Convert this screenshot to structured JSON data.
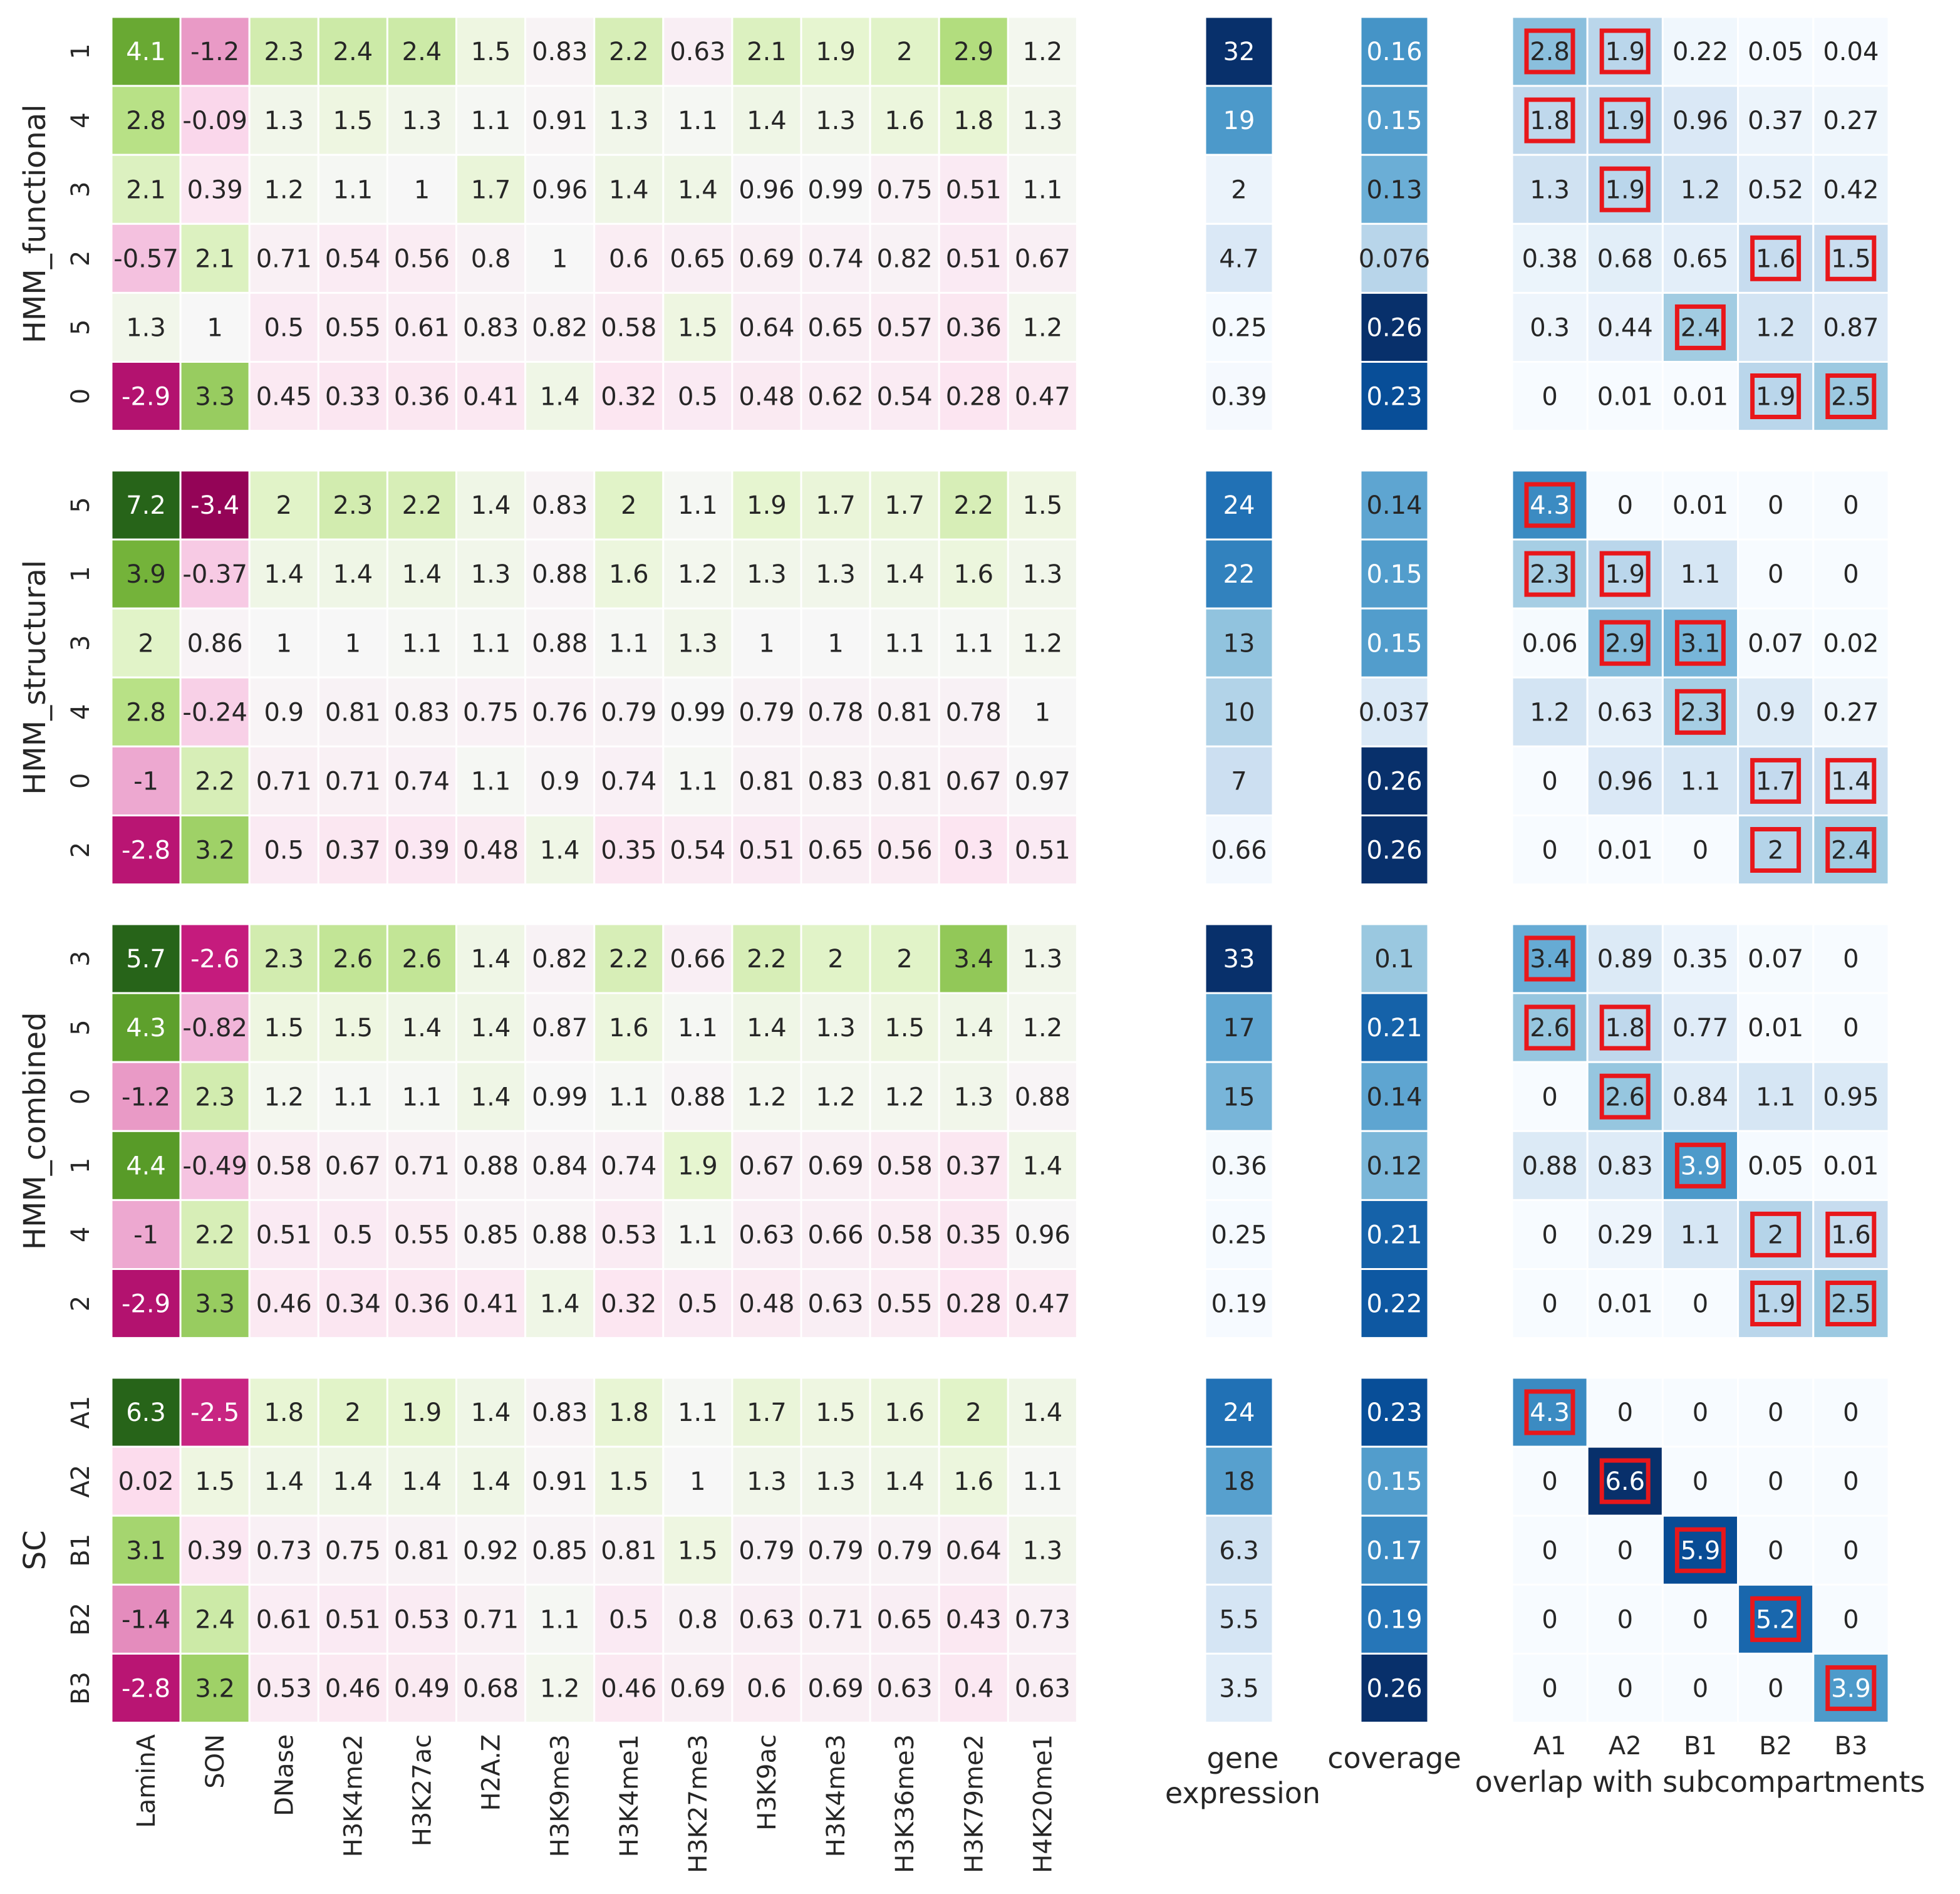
{
  "chart_data": {
    "type": "heatmap",
    "marker_columns": [
      "LaminA",
      "SON",
      "DNase",
      "H3K4me2",
      "H3K27ac",
      "H2A.Z",
      "H3K9me3",
      "H3K4me1",
      "H3K27me3",
      "H3K9ac",
      "H3K4me3",
      "H3K36me3",
      "H3K79me2",
      "H4K20me1"
    ],
    "overlap_columns": [
      "A1",
      "A2",
      "B1",
      "B2",
      "B3"
    ],
    "gene_expression_label": [
      "gene",
      "expression"
    ],
    "coverage_label": "coverage",
    "overlap_label": "overlap with subcompartments",
    "highlight_color": "#e8171b",
    "colormaps": {
      "markers": "PiYG (diverging, pink low / green high)",
      "gene_expression": "Blues",
      "coverage": "Blues",
      "overlap": "Blues"
    },
    "groups": [
      {
        "name": "HMM_functional",
        "rows": [
          {
            "label": "1",
            "markers": [
              4.1,
              -1.2,
              2.3,
              2.4,
              2.4,
              1.5,
              0.83,
              2.2,
              0.63,
              2.1,
              1.9,
              2,
              2.9,
              1.2
            ],
            "expression": 32,
            "coverage": 0.16,
            "overlap": [
              2.8,
              1.9,
              0.22,
              0.05,
              0.04
            ],
            "boxed": [
              0,
              1
            ]
          },
          {
            "label": "4",
            "markers": [
              2.8,
              -0.09,
              1.3,
              1.5,
              1.3,
              1.1,
              0.91,
              1.3,
              1.1,
              1.4,
              1.3,
              1.6,
              1.8,
              1.3
            ],
            "expression": 19,
            "coverage": 0.15,
            "overlap": [
              1.8,
              1.9,
              0.96,
              0.37,
              0.27
            ],
            "boxed": [
              0,
              1
            ]
          },
          {
            "label": "3",
            "markers": [
              2.1,
              0.39,
              1.2,
              1.1,
              1,
              1.7,
              0.96,
              1.4,
              1.4,
              0.96,
              0.99,
              0.75,
              0.51,
              1.1
            ],
            "expression": 2,
            "coverage": 0.13,
            "overlap": [
              1.3,
              1.9,
              1.2,
              0.52,
              0.42
            ],
            "boxed": [
              1
            ]
          },
          {
            "label": "2",
            "markers": [
              -0.57,
              2.1,
              0.71,
              0.54,
              0.56,
              0.8,
              1,
              0.6,
              0.65,
              0.69,
              0.74,
              0.82,
              0.51,
              0.67
            ],
            "expression": 4.7,
            "coverage": 0.076,
            "overlap": [
              0.38,
              0.68,
              0.65,
              1.6,
              1.5
            ],
            "boxed": [
              3,
              4
            ]
          },
          {
            "label": "5",
            "markers": [
              1.3,
              1,
              0.5,
              0.55,
              0.61,
              0.83,
              0.82,
              0.58,
              1.5,
              0.64,
              0.65,
              0.57,
              0.36,
              1.2
            ],
            "expression": 0.25,
            "coverage": 0.26,
            "overlap": [
              0.3,
              0.44,
              2.4,
              1.2,
              0.87
            ],
            "boxed": [
              2
            ]
          },
          {
            "label": "0",
            "markers": [
              -2.9,
              3.3,
              0.45,
              0.33,
              0.36,
              0.41,
              1.4,
              0.32,
              0.5,
              0.48,
              0.62,
              0.54,
              0.28,
              0.47
            ],
            "expression": 0.39,
            "coverage": 0.23,
            "overlap": [
              0,
              0.01,
              0.01,
              1.9,
              2.5
            ],
            "boxed": [
              3,
              4
            ]
          }
        ]
      },
      {
        "name": "HMM_structural",
        "rows": [
          {
            "label": "5",
            "markers": [
              7.2,
              -3.4,
              2,
              2.3,
              2.2,
              1.4,
              0.83,
              2,
              1.1,
              1.9,
              1.7,
              1.7,
              2.2,
              1.5
            ],
            "expression": 24,
            "coverage": 0.14,
            "overlap": [
              4.3,
              0,
              0.01,
              0,
              0
            ],
            "boxed": [
              0
            ]
          },
          {
            "label": "1",
            "markers": [
              3.9,
              -0.37,
              1.4,
              1.4,
              1.4,
              1.3,
              0.88,
              1.6,
              1.2,
              1.3,
              1.3,
              1.4,
              1.6,
              1.3
            ],
            "expression": 22,
            "coverage": 0.15,
            "overlap": [
              2.3,
              1.9,
              1.1,
              0,
              0
            ],
            "boxed": [
              0,
              1
            ]
          },
          {
            "label": "3",
            "markers": [
              2,
              0.86,
              1,
              1,
              1.1,
              1.1,
              0.88,
              1.1,
              1.3,
              1,
              1,
              1.1,
              1.1,
              1.2
            ],
            "expression": 13,
            "coverage": 0.15,
            "overlap": [
              0.06,
              2.9,
              3.1,
              0.07,
              0.02
            ],
            "boxed": [
              1,
              2
            ]
          },
          {
            "label": "4",
            "markers": [
              2.8,
              -0.24,
              0.9,
              0.81,
              0.83,
              0.75,
              0.76,
              0.79,
              0.99,
              0.79,
              0.78,
              0.81,
              0.78,
              1
            ],
            "expression": 10,
            "coverage": 0.037,
            "overlap": [
              1.2,
              0.63,
              2.3,
              0.9,
              0.27
            ],
            "boxed": [
              2
            ]
          },
          {
            "label": "0",
            "markers": [
              -1,
              2.2,
              0.71,
              0.71,
              0.74,
              1.1,
              0.9,
              0.74,
              1.1,
              0.81,
              0.83,
              0.81,
              0.67,
              0.97
            ],
            "expression": 7,
            "coverage": 0.26,
            "overlap": [
              0,
              0.96,
              1.1,
              1.7,
              1.4
            ],
            "boxed": [
              3,
              4
            ]
          },
          {
            "label": "2",
            "markers": [
              -2.8,
              3.2,
              0.5,
              0.37,
              0.39,
              0.48,
              1.4,
              0.35,
              0.54,
              0.51,
              0.65,
              0.56,
              0.3,
              0.51
            ],
            "expression": 0.66,
            "coverage": 0.26,
            "overlap": [
              0,
              0.01,
              0,
              2,
              2.4
            ],
            "boxed": [
              3,
              4
            ]
          }
        ]
      },
      {
        "name": "HMM_combined",
        "rows": [
          {
            "label": "3",
            "markers": [
              5.7,
              -2.6,
              2.3,
              2.6,
              2.6,
              1.4,
              0.82,
              2.2,
              0.66,
              2.2,
              2,
              2,
              3.4,
              1.3
            ],
            "expression": 33,
            "coverage": 0.1,
            "overlap": [
              3.4,
              0.89,
              0.35,
              0.07,
              0
            ],
            "boxed": [
              0
            ]
          },
          {
            "label": "5",
            "markers": [
              4.3,
              -0.82,
              1.5,
              1.5,
              1.4,
              1.4,
              0.87,
              1.6,
              1.1,
              1.4,
              1.3,
              1.5,
              1.4,
              1.2
            ],
            "expression": 17,
            "coverage": 0.21,
            "overlap": [
              2.6,
              1.8,
              0.77,
              0.01,
              0
            ],
            "boxed": [
              0,
              1
            ]
          },
          {
            "label": "0",
            "markers": [
              -1.2,
              2.3,
              1.2,
              1.1,
              1.1,
              1.4,
              0.99,
              1.1,
              0.88,
              1.2,
              1.2,
              1.2,
              1.3,
              0.88
            ],
            "expression": 15,
            "coverage": 0.14,
            "overlap": [
              0,
              2.6,
              0.84,
              1.1,
              0.95
            ],
            "boxed": [
              1
            ]
          },
          {
            "label": "1",
            "markers": [
              4.4,
              -0.49,
              0.58,
              0.67,
              0.71,
              0.88,
              0.84,
              0.74,
              1.9,
              0.67,
              0.69,
              0.58,
              0.37,
              1.4
            ],
            "expression": 0.36,
            "coverage": 0.12,
            "overlap": [
              0.88,
              0.83,
              3.9,
              0.05,
              0.01
            ],
            "boxed": [
              2
            ]
          },
          {
            "label": "4",
            "markers": [
              -1,
              2.2,
              0.51,
              0.5,
              0.55,
              0.85,
              0.88,
              0.53,
              1.1,
              0.63,
              0.66,
              0.58,
              0.35,
              0.96
            ],
            "expression": 0.25,
            "coverage": 0.21,
            "overlap": [
              0,
              0.29,
              1.1,
              2,
              1.6
            ],
            "boxed": [
              3,
              4
            ]
          },
          {
            "label": "2",
            "markers": [
              -2.9,
              3.3,
              0.46,
              0.34,
              0.36,
              0.41,
              1.4,
              0.32,
              0.5,
              0.48,
              0.63,
              0.55,
              0.28,
              0.47
            ],
            "expression": 0.19,
            "coverage": 0.22,
            "overlap": [
              0,
              0.01,
              0,
              1.9,
              2.5
            ],
            "boxed": [
              3,
              4
            ]
          }
        ]
      },
      {
        "name": "SC",
        "rows": [
          {
            "label": "A1",
            "markers": [
              6.3,
              -2.5,
              1.8,
              2,
              1.9,
              1.4,
              0.83,
              1.8,
              1.1,
              1.7,
              1.5,
              1.6,
              2,
              1.4
            ],
            "expression": 24,
            "coverage": 0.23,
            "overlap": [
              4.3,
              0,
              0,
              0,
              0
            ],
            "boxed": [
              0
            ]
          },
          {
            "label": "A2",
            "markers": [
              0.02,
              1.5,
              1.4,
              1.4,
              1.4,
              1.4,
              0.91,
              1.5,
              1,
              1.3,
              1.3,
              1.4,
              1.6,
              1.1
            ],
            "expression": 18,
            "coverage": 0.15,
            "overlap": [
              0,
              6.6,
              0,
              0,
              0
            ],
            "boxed": [
              1
            ]
          },
          {
            "label": "B1",
            "markers": [
              3.1,
              0.39,
              0.73,
              0.75,
              0.81,
              0.92,
              0.85,
              0.81,
              1.5,
              0.79,
              0.79,
              0.79,
              0.64,
              1.3
            ],
            "expression": 6.3,
            "coverage": 0.17,
            "overlap": [
              0,
              0,
              5.9,
              0,
              0
            ],
            "boxed": [
              2
            ]
          },
          {
            "label": "B2",
            "markers": [
              -1.4,
              2.4,
              0.61,
              0.51,
              0.53,
              0.71,
              1.1,
              0.5,
              0.8,
              0.63,
              0.71,
              0.65,
              0.43,
              0.73
            ],
            "expression": 5.5,
            "coverage": 0.19,
            "overlap": [
              0,
              0,
              0,
              5.2,
              0
            ],
            "boxed": [
              3
            ]
          },
          {
            "label": "B3",
            "markers": [
              -2.8,
              3.2,
              0.53,
              0.46,
              0.49,
              0.68,
              1.2,
              0.46,
              0.69,
              0.6,
              0.69,
              0.63,
              0.4,
              0.63
            ],
            "expression": 3.5,
            "coverage": 0.26,
            "overlap": [
              0,
              0,
              0,
              0,
              3.9
            ],
            "boxed": [
              4
            ]
          }
        ]
      }
    ]
  }
}
